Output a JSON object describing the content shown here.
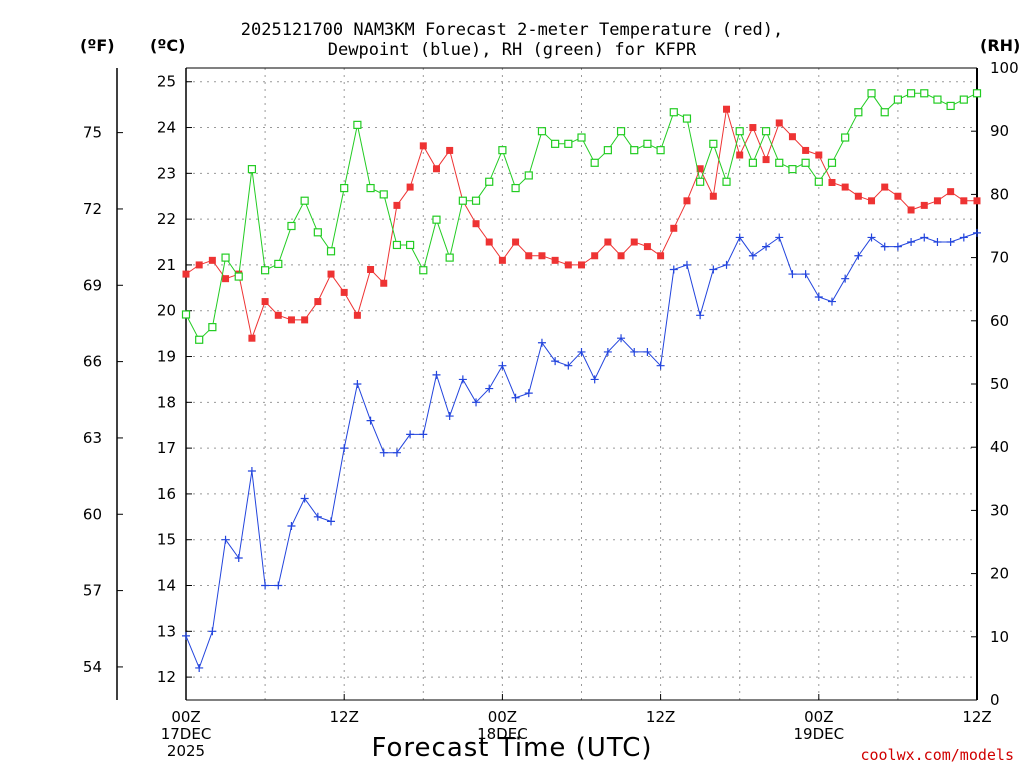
{
  "header": {
    "title_line1": "2025121700 NAM3KM Forecast 2-meter Temperature (red),",
    "title_line2": "Dewpoint (blue), RH (green) for KFPR"
  },
  "units": {
    "fahrenheit": "(ºF)",
    "celsius": "(ºC)",
    "rh": "(RH)"
  },
  "footer": {
    "xlabel": "Forecast Time (UTC)",
    "credit": "coolwx.com/models"
  },
  "colors": {
    "temperature": "#ee3333",
    "dewpoint": "#2244dd",
    "rh": "#22cc22",
    "grid": "#999999"
  },
  "chart_data": {
    "type": "line",
    "title": "2025121700 NAM3KM Forecast 2-meter Temperature (red), Dewpoint (blue), RH (green) for KFPR",
    "xlabel": "Forecast Time (UTC)",
    "x_range_hours": [
      0,
      60
    ],
    "x_ticks": [
      {
        "hour": 0,
        "lines": [
          "00Z",
          "17DEC",
          "2025"
        ]
      },
      {
        "hour": 12,
        "lines": [
          "12Z"
        ]
      },
      {
        "hour": 24,
        "lines": [
          "00Z",
          "18DEC"
        ]
      },
      {
        "hour": 36,
        "lines": [
          "12Z"
        ]
      },
      {
        "hour": 48,
        "lines": [
          "00Z",
          "19DEC"
        ]
      },
      {
        "hour": 60,
        "lines": [
          "12Z"
        ]
      }
    ],
    "ylim_celsius": [
      11.5,
      25.3
    ],
    "ylim_rh": [
      0,
      100
    ],
    "y_ticks_celsius": [
      "12",
      "13",
      "14",
      "15",
      "16",
      "17",
      "18",
      "19",
      "20",
      "21",
      "22",
      "23",
      "24",
      "25"
    ],
    "y_ticks_fahrenheit": [
      "54",
      "57",
      "60",
      "63",
      "66",
      "69",
      "72",
      "75"
    ],
    "y_ticks_rh": [
      "0",
      "10",
      "20",
      "30",
      "40",
      "50",
      "60",
      "70",
      "80",
      "90",
      "100"
    ],
    "series": [
      {
        "name": "Temperature",
        "unit": "C",
        "marker": "filled-square",
        "values": [
          20.8,
          21.0,
          21.1,
          20.7,
          20.8,
          19.4,
          20.2,
          19.9,
          19.8,
          19.8,
          20.2,
          20.8,
          20.4,
          19.9,
          20.9,
          20.6,
          22.3,
          22.7,
          23.6,
          23.1,
          23.5,
          22.4,
          21.9,
          21.5,
          21.1,
          21.5,
          21.2,
          21.2,
          21.1,
          21.0,
          21.0,
          21.2,
          21.5,
          21.2,
          21.5,
          21.4,
          21.2,
          21.8,
          22.4,
          23.1,
          22.5,
          24.4,
          23.4,
          24.0,
          23.3,
          24.1,
          23.8,
          23.5,
          23.4,
          22.8,
          22.7,
          22.5,
          22.4,
          22.7,
          22.5,
          22.2,
          22.3,
          22.4,
          22.6,
          22.4,
          22.4
        ]
      },
      {
        "name": "Dewpoint",
        "unit": "C",
        "marker": "plus",
        "values": [
          12.9,
          12.2,
          13.0,
          15.0,
          14.6,
          16.5,
          14.0,
          14.0,
          15.3,
          15.9,
          15.5,
          15.4,
          17.0,
          18.4,
          17.6,
          16.9,
          16.9,
          17.3,
          17.3,
          18.6,
          17.7,
          18.5,
          18.0,
          18.3,
          18.8,
          18.1,
          18.2,
          19.3,
          18.9,
          18.8,
          19.1,
          18.5,
          19.1,
          19.4,
          19.1,
          19.1,
          18.8,
          20.9,
          21.0,
          19.9,
          20.9,
          21.0,
          21.6,
          21.2,
          21.4,
          21.6,
          20.8,
          20.8,
          20.3,
          20.2,
          20.7,
          21.2,
          21.6,
          21.4,
          21.4,
          21.5,
          21.6,
          21.5,
          21.5,
          21.6,
          21.7
        ]
      },
      {
        "name": "RH",
        "unit": "%",
        "marker": "open-square",
        "values": [
          61,
          57,
          59,
          70,
          67,
          84,
          68,
          69,
          75,
          79,
          74,
          71,
          81,
          91,
          81,
          80,
          72,
          72,
          68,
          76,
          70,
          79,
          79,
          82,
          87,
          81,
          83,
          90,
          88,
          88,
          89,
          85,
          87,
          90,
          87,
          88,
          87,
          93,
          92,
          82,
          88,
          82,
          90,
          85,
          90,
          85,
          84,
          85,
          82,
          85,
          89,
          93,
          96,
          93,
          95,
          96,
          96,
          95,
          94,
          95,
          96
        ]
      }
    ]
  }
}
